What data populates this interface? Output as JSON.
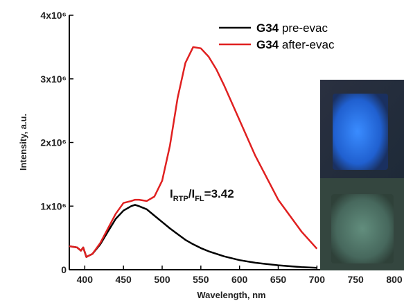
{
  "chart_data": {
    "type": "line",
    "x_label": "Wavelength, nm",
    "y_label": "Intensity, a.u.",
    "xlim": [
      380,
      800
    ],
    "xticks": [
      400,
      450,
      500,
      550,
      600,
      650,
      700,
      750,
      800
    ],
    "ylim": [
      0,
      4000000
    ],
    "yticks": [
      0,
      {
        "value": 1000000,
        "label": "1x10⁶"
      },
      {
        "value": 2000000,
        "label": "2x10⁶"
      },
      {
        "value": 3000000,
        "label": "3x10⁶"
      },
      {
        "value": 4000000,
        "label": "4x10⁶"
      }
    ],
    "x": [
      380,
      390,
      395,
      398,
      402,
      410,
      420,
      430,
      440,
      450,
      460,
      465,
      470,
      480,
      490,
      500,
      510,
      520,
      530,
      540,
      550,
      560,
      570,
      580,
      600,
      620,
      650,
      680,
      700
    ],
    "series": [
      {
        "name": "G34 pre-evac",
        "color": "#000000",
        "values": [
          370000,
          350000,
          300000,
          350000,
          200000,
          250000,
          400000,
          600000,
          800000,
          930000,
          1000000,
          1020000,
          1000000,
          950000,
          850000,
          750000,
          650000,
          560000,
          470000,
          400000,
          340000,
          290000,
          250000,
          210000,
          150000,
          110000,
          70000,
          40000,
          30000
        ]
      },
      {
        "name": "G34 after-evac",
        "color": "#e02020",
        "values": [
          370000,
          350000,
          300000,
          350000,
          200000,
          250000,
          420000,
          650000,
          880000,
          1050000,
          1080000,
          1100000,
          1100000,
          1080000,
          1150000,
          1400000,
          1950000,
          2700000,
          3250000,
          3500000,
          3480000,
          3350000,
          3150000,
          2900000,
          2350000,
          1800000,
          1100000,
          600000,
          330000
        ]
      }
    ],
    "annotation": {
      "main1": "I",
      "sub1": "RTP",
      "main2": "/I",
      "sub2": "FL",
      "rest": "=3.42"
    }
  }
}
